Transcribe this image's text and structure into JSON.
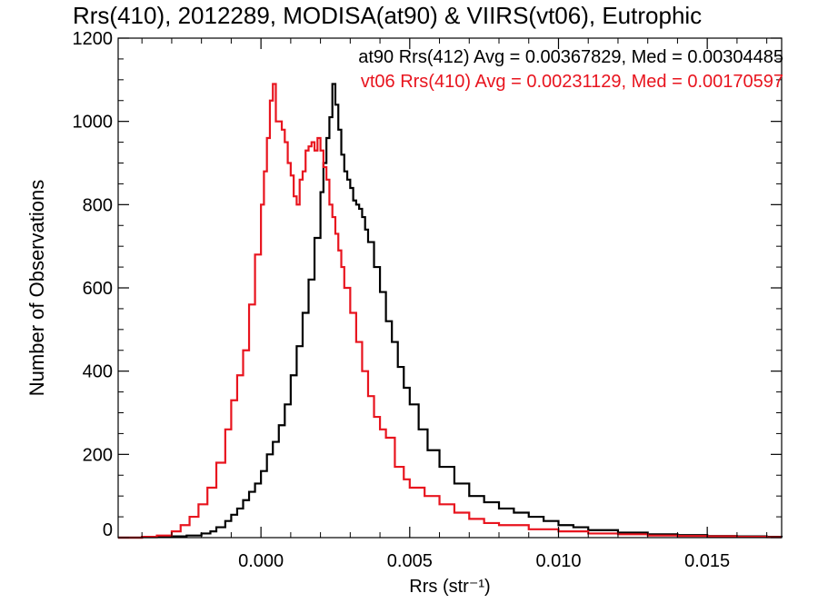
{
  "chart_data": {
    "type": "line",
    "title": "Rrs(410), 2012289, MODISA(at90) & VIIRS(vt06), Eutrophic",
    "xlabel": "Rrs (str⁻¹)",
    "ylabel": "Number of Observations",
    "xlim": [
      -0.0048,
      0.0175
    ],
    "ylim": [
      0,
      1200
    ],
    "x_ticks": [
      0.0,
      0.005,
      0.01,
      0.015
    ],
    "x_tick_labels": [
      "0.000",
      "0.005",
      "0.010",
      "0.015"
    ],
    "y_ticks": [
      0,
      200,
      400,
      600,
      800,
      1000,
      1200
    ],
    "y_tick_labels": [
      "0",
      "200",
      "400",
      "600",
      "800",
      "1000",
      "1200"
    ],
    "grid": false,
    "legend_position": "top-right",
    "series": [
      {
        "label": "at90 Rrs(412) Avg = 0.00367829, Med = 0.00304485",
        "color": "#000000",
        "points": [
          [
            -0.0048,
            0
          ],
          [
            -0.004,
            1
          ],
          [
            -0.0035,
            2
          ],
          [
            -0.003,
            3
          ],
          [
            -0.0025,
            5
          ],
          [
            -0.002,
            10
          ],
          [
            -0.0017,
            15
          ],
          [
            -0.0015,
            25
          ],
          [
            -0.0012,
            40
          ],
          [
            -0.001,
            55
          ],
          [
            -0.0008,
            70
          ],
          [
            -0.0006,
            90
          ],
          [
            -0.0004,
            110
          ],
          [
            -0.0002,
            130
          ],
          [
            0.0,
            160
          ],
          [
            0.0002,
            200
          ],
          [
            0.0004,
            230
          ],
          [
            0.0006,
            270
          ],
          [
            0.0008,
            320
          ],
          [
            0.001,
            390
          ],
          [
            0.0012,
            460
          ],
          [
            0.0014,
            540
          ],
          [
            0.0016,
            620
          ],
          [
            0.0018,
            720
          ],
          [
            0.002,
            830
          ],
          [
            0.0021,
            900
          ],
          [
            0.0022,
            960
          ],
          [
            0.0023,
            1010
          ],
          [
            0.0024,
            1090
          ],
          [
            0.0025,
            1040
          ],
          [
            0.0026,
            980
          ],
          [
            0.0027,
            920
          ],
          [
            0.0028,
            880
          ],
          [
            0.0029,
            860
          ],
          [
            0.003,
            840
          ],
          [
            0.0031,
            810
          ],
          [
            0.0032,
            800
          ],
          [
            0.0033,
            790
          ],
          [
            0.0034,
            770
          ],
          [
            0.0035,
            740
          ],
          [
            0.0036,
            710
          ],
          [
            0.0038,
            650
          ],
          [
            0.004,
            590
          ],
          [
            0.0042,
            520
          ],
          [
            0.0044,
            470
          ],
          [
            0.0046,
            410
          ],
          [
            0.0048,
            360
          ],
          [
            0.005,
            320
          ],
          [
            0.0053,
            260
          ],
          [
            0.0056,
            210
          ],
          [
            0.006,
            170
          ],
          [
            0.0065,
            130
          ],
          [
            0.007,
            100
          ],
          [
            0.0075,
            85
          ],
          [
            0.008,
            70
          ],
          [
            0.0085,
            60
          ],
          [
            0.009,
            50
          ],
          [
            0.0095,
            40
          ],
          [
            0.01,
            30
          ],
          [
            0.0105,
            25
          ],
          [
            0.011,
            18
          ],
          [
            0.012,
            12
          ],
          [
            0.013,
            8
          ],
          [
            0.014,
            6
          ],
          [
            0.015,
            4
          ],
          [
            0.016,
            3
          ],
          [
            0.017,
            2
          ],
          [
            0.0175,
            1
          ]
        ]
      },
      {
        "label": "vt06 Rrs(410) Avg = 0.00231129, Med = 0.00170597",
        "color": "#e8141e",
        "points": [
          [
            -0.0048,
            0
          ],
          [
            -0.004,
            2
          ],
          [
            -0.0035,
            5
          ],
          [
            -0.003,
            15
          ],
          [
            -0.0027,
            30
          ],
          [
            -0.0024,
            50
          ],
          [
            -0.0021,
            80
          ],
          [
            -0.0018,
            120
          ],
          [
            -0.0015,
            180
          ],
          [
            -0.0012,
            260
          ],
          [
            -0.001,
            330
          ],
          [
            -0.0008,
            390
          ],
          [
            -0.0006,
            450
          ],
          [
            -0.0004,
            560
          ],
          [
            -0.0002,
            680
          ],
          [
            0.0,
            800
          ],
          [
            0.0001,
            880
          ],
          [
            0.0002,
            960
          ],
          [
            0.0003,
            1050
          ],
          [
            0.0004,
            1090
          ],
          [
            0.0005,
            1000
          ],
          [
            0.0006,
            1000
          ],
          [
            0.0007,
            980
          ],
          [
            0.0008,
            950
          ],
          [
            0.0009,
            900
          ],
          [
            0.001,
            870
          ],
          [
            0.0011,
            820
          ],
          [
            0.0012,
            800
          ],
          [
            0.0013,
            860
          ],
          [
            0.0014,
            880
          ],
          [
            0.0015,
            930
          ],
          [
            0.0016,
            940
          ],
          [
            0.0017,
            950
          ],
          [
            0.0018,
            930
          ],
          [
            0.0019,
            960
          ],
          [
            0.002,
            930
          ],
          [
            0.0021,
            890
          ],
          [
            0.0022,
            860
          ],
          [
            0.0023,
            800
          ],
          [
            0.0024,
            770
          ],
          [
            0.0025,
            730
          ],
          [
            0.0026,
            690
          ],
          [
            0.0027,
            650
          ],
          [
            0.0028,
            600
          ],
          [
            0.003,
            540
          ],
          [
            0.0032,
            470
          ],
          [
            0.0034,
            400
          ],
          [
            0.0036,
            340
          ],
          [
            0.0038,
            290
          ],
          [
            0.004,
            260
          ],
          [
            0.0042,
            240
          ],
          [
            0.0045,
            170
          ],
          [
            0.0048,
            140
          ],
          [
            0.005,
            120
          ],
          [
            0.0055,
            100
          ],
          [
            0.006,
            80
          ],
          [
            0.0065,
            60
          ],
          [
            0.007,
            45
          ],
          [
            0.0075,
            35
          ],
          [
            0.008,
            30
          ],
          [
            0.009,
            20
          ],
          [
            0.01,
            15
          ],
          [
            0.011,
            10
          ],
          [
            0.012,
            8
          ],
          [
            0.013,
            5
          ],
          [
            0.014,
            4
          ],
          [
            0.015,
            3
          ],
          [
            0.016,
            2
          ],
          [
            0.017,
            1
          ],
          [
            0.0175,
            1
          ]
        ]
      }
    ]
  }
}
